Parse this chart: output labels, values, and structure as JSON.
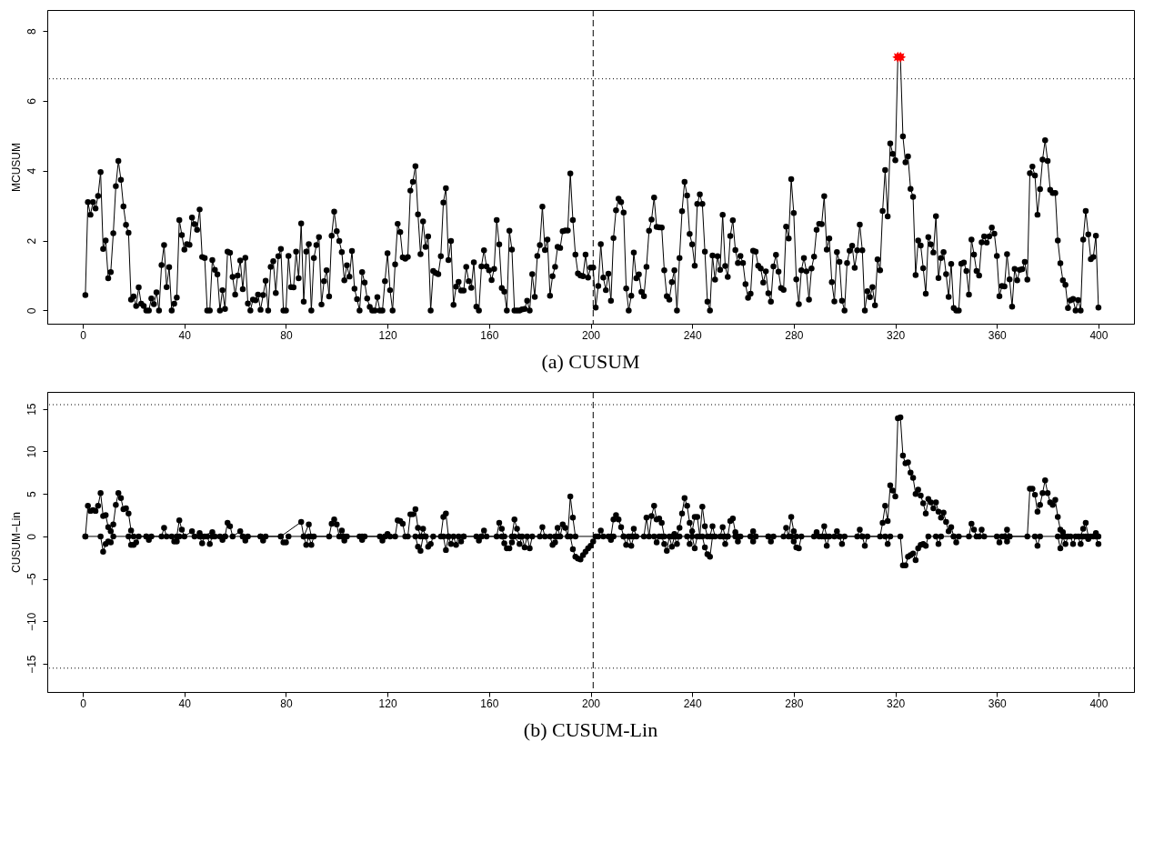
{
  "chart_data": [
    {
      "type": "line",
      "title": "(a)  CUSUM",
      "ylabel": "MCUSUM",
      "xlim": [
        -14,
        414
      ],
      "ylim": [
        -0.38,
        8.6
      ],
      "xticks": [
        0,
        40,
        80,
        120,
        160,
        200,
        240,
        280,
        320,
        360,
        400
      ],
      "yticks": [
        0,
        2,
        4,
        6,
        8
      ],
      "grid": false,
      "ref_lines": [
        {
          "axis": "x",
          "value": 201,
          "line_style": "dashed",
          "color": "#000000"
        },
        {
          "axis": "y",
          "value": 6.63,
          "line_style": "dotted",
          "color": "#000000"
        }
      ],
      "series": [
        {
          "type": "line",
          "color": "#000000",
          "marker": "circle",
          "x": [
            1,
            2,
            3,
            4,
            5,
            6,
            7,
            8,
            9,
            10,
            11,
            12,
            13,
            14,
            15,
            16,
            17,
            18,
            19,
            20,
            21,
            22,
            23,
            24,
            25,
            26,
            27,
            28,
            29,
            30,
            31,
            32,
            33,
            34,
            35,
            36,
            37,
            38,
            39,
            40,
            41,
            42,
            43,
            44,
            45,
            46,
            47,
            48,
            49,
            50,
            51,
            52,
            53,
            54,
            55,
            56,
            57,
            58,
            59,
            60,
            61,
            62,
            63,
            64,
            65,
            66,
            67,
            68,
            69,
            70,
            71,
            72,
            73,
            74,
            75,
            76,
            77,
            78,
            79,
            80,
            81,
            82,
            83,
            84,
            85,
            86,
            87,
            88,
            89,
            90,
            91,
            92,
            93,
            94,
            95,
            96,
            97,
            98,
            99,
            100,
            101,
            102,
            103,
            104,
            105,
            106,
            107,
            108,
            109,
            110,
            111,
            112,
            113,
            114,
            115,
            116,
            117,
            118,
            119,
            120,
            121,
            122,
            123,
            124,
            125,
            126,
            127,
            128,
            129,
            130,
            131,
            132,
            133,
            134,
            135,
            136,
            137,
            138,
            139,
            140,
            141,
            142,
            143,
            144,
            145,
            146,
            147,
            148,
            149,
            150,
            151,
            152,
            153,
            154,
            155,
            156,
            157,
            158,
            159,
            160,
            161,
            162,
            163,
            164,
            165,
            166,
            167,
            168,
            169,
            170,
            171,
            172,
            173,
            174,
            175,
            176,
            177,
            178,
            179,
            180,
            181,
            182,
            183,
            184,
            185,
            186,
            187,
            188,
            189,
            190,
            191,
            192,
            193,
            194,
            195,
            196,
            197,
            198,
            199,
            200,
            201,
            202,
            203,
            204,
            205,
            206,
            207,
            208,
            209,
            210,
            211,
            212,
            213,
            214,
            215,
            216,
            217,
            218,
            219,
            220,
            221,
            222,
            223,
            224,
            225,
            226,
            227,
            228,
            229,
            230,
            231,
            232,
            233,
            234,
            235,
            236,
            237,
            238,
            239,
            240,
            241,
            242,
            243,
            244,
            245,
            246,
            247,
            248,
            249,
            250,
            251,
            252,
            253,
            254,
            255,
            256,
            257,
            258,
            259,
            260,
            261,
            262,
            263,
            264,
            265,
            266,
            267,
            268,
            269,
            270,
            271,
            272,
            273,
            274,
            275,
            276,
            277,
            278,
            279,
            280,
            281,
            282,
            283,
            284,
            285,
            286,
            287,
            288,
            289,
            290,
            291,
            292,
            293,
            294,
            295,
            296,
            297,
            298,
            299,
            300,
            301,
            302,
            303,
            304,
            305,
            306,
            307,
            308,
            309,
            310,
            311,
            312,
            313,
            314,
            315,
            316,
            317,
            318,
            319,
            320,
            321,
            322,
            323,
            324,
            325,
            326,
            327,
            328,
            329,
            330,
            331,
            332,
            333,
            334,
            335,
            336,
            337,
            338,
            339,
            340,
            341,
            342,
            343,
            344,
            345,
            346,
            347,
            348,
            349,
            350,
            351,
            352,
            353,
            354,
            355,
            356,
            357,
            358,
            359,
            360,
            361,
            362,
            363,
            364,
            365,
            366,
            367,
            368,
            369,
            370,
            371,
            372,
            373,
            374,
            375,
            376,
            377,
            378,
            379,
            380,
            381,
            382,
            383,
            384,
            385,
            386,
            387,
            388,
            389,
            390,
            391,
            392,
            393,
            394,
            395,
            396,
            397,
            398,
            399,
            400
          ],
          "values": [
            0.44,
            3.1,
            2.74,
            3.1,
            2.92,
            3.28,
            3.96,
            1.76,
            2.0,
            0.92,
            1.1,
            2.21,
            3.56,
            4.28,
            3.74,
            2.98,
            2.45,
            2.22,
            0.31,
            0.4,
            0.13,
            0.66,
            0.19,
            0.13,
            0,
            0,
            0.34,
            0.18,
            0.52,
            0,
            1.3,
            1.87,
            0.67,
            1.24,
            0,
            0.19,
            0.37,
            2.59,
            2.16,
            1.74,
            1.9,
            1.88,
            2.66,
            2.47,
            2.31,
            2.89,
            1.53,
            1.5,
            0,
            0,
            1.44,
            1.16,
            1.03,
            0,
            0.58,
            0.04,
            1.68,
            1.65,
            0.96,
            0.45,
            1.0,
            1.43,
            0.61,
            1.51,
            0.2,
            0,
            0.31,
            0.29,
            0.45,
            0.02,
            0.44,
            0.85,
            0,
            1.25,
            1.41,
            0.5,
            1.55,
            1.76,
            0,
            0,
            1.56,
            0.67,
            0.66,
            1.68,
            0.92,
            2.49,
            0.25,
            1.68,
            1.9,
            0,
            1.5,
            1.87,
            2.1,
            0.17,
            0.84,
            1.15,
            0.4,
            2.14,
            2.83,
            2.27,
            1.99,
            1.67,
            0.86,
            1.29,
            0.97,
            1.7,
            0.62,
            0.32,
            0,
            1.1,
            0.8,
            0.34,
            0.1,
            0,
            0,
            0.38,
            0,
            0,
            0.84,
            1.64,
            0.58,
            0,
            1.32,
            2.48,
            2.24,
            1.52,
            1.48,
            1.53,
            3.43,
            3.68,
            4.13,
            2.75,
            1.61,
            2.55,
            1.82,
            2.12,
            0,
            1.13,
            1.07,
            1.04,
            1.55,
            3.09,
            3.5,
            1.44,
            1.99,
            0.16,
            0.68,
            0.82,
            0.57,
            0.57,
            1.25,
            0.84,
            0.65,
            1.38,
            0.11,
            0,
            1.26,
            1.72,
            1.26,
            1.15,
            0.87,
            1.19,
            2.59,
            1.89,
            0.64,
            0.54,
            0,
            2.28,
            1.74,
            0,
            0,
            0,
            0.03,
            0.04,
            0.28,
            0,
            1.04,
            0.39,
            1.56,
            1.87,
            2.97,
            1.73,
            2.03,
            0.42,
            0.98,
            1.25,
            1.82,
            1.79,
            2.27,
            2.29,
            2.29,
            3.92,
            2.59,
            1.6,
            1.06,
            1.0,
            0.98,
            1.6,
            0.94,
            1.23,
            1.23,
            0.08,
            0.7,
            1.9,
            0.94,
            0.58,
            1.05,
            0.28,
            2.07,
            2.87,
            3.2,
            3.1,
            2.8,
            0.63,
            0,
            0.42,
            1.66,
            0.92,
            1.03,
            0.53,
            0.41,
            1.25,
            2.28,
            2.6,
            3.23,
            2.39,
            2.38,
            2.37,
            1.15,
            0.41,
            0.31,
            0.81,
            1.15,
            0,
            1.5,
            2.84,
            3.68,
            3.29,
            2.19,
            1.89,
            1.28,
            3.05,
            3.32,
            3.05,
            1.68,
            0.25,
            0,
            1.57,
            0.88,
            1.55,
            1.16,
            2.74,
            1.27,
            0.96,
            2.13,
            2.58,
            1.73,
            1.36,
            1.56,
            1.36,
            0.75,
            0.36,
            0.48,
            1.71,
            1.68,
            1.28,
            1.2,
            0.8,
            1.12,
            0.49,
            0.25,
            1.26,
            1.59,
            1.11,
            0.64,
            0.59,
            2.4,
            2.06,
            3.76,
            2.79,
            0.89,
            0.18,
            1.15,
            1.5,
            1.12,
            0.31,
            1.2,
            1.54,
            2.31,
            2.48,
            2.47,
            3.27,
            1.74,
            2.06,
            0.81,
            0.26,
            1.67,
            1.39,
            0.28,
            0,
            1.36,
            1.71,
            1.85,
            1.22,
            1.72,
            2.46,
            1.72,
            0,
            0.55,
            0.38,
            0.67,
            0.15,
            1.46,
            1.15,
            2.85,
            4.02,
            2.69,
            4.78,
            4.48,
            4.3,
            7.25,
            7.25,
            4.98,
            4.24,
            4.41,
            3.48,
            3.25,
            1.01,
            2.0,
            1.86,
            1.21,
            0.48,
            2.1,
            1.89,
            1.66,
            2.7,
            0.93,
            1.5,
            1.67,
            1.04,
            0.39,
            1.33,
            0.07,
            0,
            0,
            1.34,
            1.37,
            1.13,
            0.45,
            2.03,
            1.6,
            1.13,
            1.0,
            1.95,
            2.12,
            1.94,
            2.12,
            2.37,
            2.2,
            1.56,
            0.41,
            0.7,
            0.69,
            1.61,
            0.89,
            0.11,
            1.19,
            0.86,
            1.16,
            1.18,
            1.39,
            0.88,
            3.93,
            4.12,
            3.86,
            2.74,
            3.47,
            4.32,
            4.87,
            4.28,
            3.45,
            3.36,
            3.36,
            2.0,
            1.35,
            0.86,
            0.73,
            0.07,
            0.29,
            0.33,
            0,
            0.3,
            0,
            2.03,
            2.85,
            2.18,
            1.47,
            1.53,
            2.14,
            0.08
          ]
        },
        {
          "type": "scatter",
          "color": "#ff0000",
          "marker": "star",
          "x": [
            321,
            322
          ],
          "values": [
            7.25,
            7.25
          ]
        }
      ]
    },
    {
      "type": "line",
      "title": "(b)  CUSUM-Lin",
      "ylabel": "CUSUM−Lin",
      "xlim": [
        -14,
        414
      ],
      "ylim": [
        -18.3,
        17
      ],
      "xticks": [
        0,
        40,
        80,
        120,
        160,
        200,
        240,
        280,
        320,
        360,
        400
      ],
      "yticks": [
        {
          "value": -15,
          "label": "−15"
        },
        {
          "value": -10,
          "label": "−10"
        },
        {
          "value": -5,
          "label": "−5"
        },
        0,
        5,
        10,
        15
      ],
      "grid": false,
      "ref_lines": [
        {
          "axis": "x",
          "value": 201,
          "line_style": "dashed",
          "color": "#000000"
        },
        {
          "axis": "y",
          "value": 15.5,
          "line_style": "dotted",
          "color": "#000000"
        },
        {
          "axis": "y",
          "value": -15.5,
          "line_style": "dotted",
          "color": "#000000"
        }
      ],
      "series": [
        {
          "type": "line",
          "color": "#000000",
          "marker": "circle",
          "x": [
            1,
            2,
            3,
            4,
            5,
            6,
            7,
            8,
            9,
            10,
            11,
            12,
            13,
            14,
            15,
            16,
            17,
            18,
            19,
            20,
            25,
            31,
            32,
            33,
            37,
            38,
            39,
            40,
            43,
            44,
            46,
            47,
            51,
            52,
            56,
            57,
            58,
            59,
            62,
            63,
            70,
            78,
            86,
            87,
            89,
            90,
            97,
            98,
            99,
            100,
            101,
            102,
            103,
            110,
            119,
            120,
            121,
            123,
            124,
            125,
            126,
            127,
            128,
            129,
            130,
            131,
            132,
            133,
            134,
            135,
            141,
            142,
            143,
            144,
            150,
            157,
            158,
            159,
            163,
            164,
            165,
            166,
            169,
            170,
            171,
            172,
            180,
            181,
            182,
            186,
            187,
            188,
            189,
            190,
            191,
            192,
            193,
            194,
            203,
            204,
            205,
            208,
            209,
            210,
            211,
            212,
            213,
            216,
            217,
            218,
            221,
            222,
            223,
            224,
            225,
            226,
            227,
            228,
            229,
            232,
            233,
            234,
            235,
            236,
            237,
            238,
            239,
            240,
            241,
            242,
            243,
            244,
            245,
            246,
            247,
            248,
            249,
            251,
            252,
            253,
            254,
            255,
            256,
            257,
            258,
            263,
            264,
            265,
            270,
            276,
            277,
            278,
            279,
            280,
            281,
            288,
            289,
            290,
            291,
            292,
            293,
            296,
            297,
            298,
            305,
            306,
            307,
            314,
            315,
            316,
            317,
            318,
            319,
            320,
            321,
            322,
            323,
            324,
            325,
            326,
            327,
            328,
            329,
            330,
            331,
            332,
            333,
            334,
            335,
            336,
            337,
            338,
            339,
            340,
            341,
            342,
            343,
            349,
            350,
            351,
            352,
            353,
            354,
            355,
            363,
            364,
            365,
            372,
            373,
            374,
            375,
            376,
            377,
            378,
            379,
            380,
            381,
            382,
            383,
            384,
            385,
            386,
            387,
            393,
            394,
            395,
            396,
            398,
            399,
            400
          ],
          "values": [
            0,
            3.6,
            3.0,
            3.1,
            3.0,
            3.6,
            5.1,
            2.4,
            2.5,
            1.1,
            0.6,
            1.4,
            3.7,
            5.1,
            4.5,
            3.2,
            3.3,
            2.7,
            0.7,
            0,
            0,
            0,
            1.0,
            0,
            0,
            1.9,
            0.8,
            0,
            0.6,
            0,
            0.4,
            0,
            0.5,
            0,
            0,
            1.6,
            1.2,
            0,
            0.6,
            0,
            0,
            0,
            1.7,
            0,
            1.4,
            0,
            0,
            1.5,
            2.0,
            1.4,
            0,
            0.7,
            0,
            0,
            0,
            0.3,
            0,
            0,
            1.9,
            1.8,
            1.5,
            0,
            0,
            2.6,
            2.6,
            3.2,
            1.0,
            0,
            0.9,
            0,
            0,
            2.3,
            2.7,
            0,
            0,
            0,
            0.7,
            0,
            0,
            1.6,
            0.9,
            0,
            0,
            2.0,
            0.9,
            0,
            0,
            1.1,
            0,
            0,
            1.0,
            0,
            1.4,
            1.0,
            0,
            4.7,
            2.2,
            0,
            0,
            0.7,
            0,
            0,
            2.0,
            2.5,
            2.0,
            1.1,
            0,
            0,
            0.9,
            0,
            0,
            2.2,
            0,
            2.4,
            3.6,
            2.0,
            2.1,
            1.6,
            0,
            0,
            0.3,
            0,
            1.0,
            2.7,
            4.5,
            3.6,
            1.6,
            0.6,
            2.3,
            2.3,
            0,
            3.5,
            1.2,
            0,
            0,
            1.2,
            0,
            0,
            1.1,
            0,
            0,
            1.8,
            2.1,
            0.5,
            0,
            0,
            0.6,
            0,
            0,
            0,
            1.0,
            0,
            2.3,
            0.6,
            0,
            0,
            0.5,
            0,
            0,
            1.2,
            0,
            0,
            0.6,
            0,
            0,
            0.8,
            0,
            0,
            1.6,
            3.6,
            1.8,
            6.0,
            5.4,
            4.7,
            13.9,
            14.0,
            9.5,
            8.6,
            8.7,
            7.5,
            6.9,
            5.0,
            5.5,
            4.8,
            3.9,
            2.7,
            4.4,
            4.0,
            3.3,
            4.0,
            2.9,
            2.2,
            2.8,
            1.7,
            0.6,
            1.1,
            0,
            0,
            1.5,
            0.8,
            0,
            0,
            0.8,
            0,
            0,
            0.8,
            0,
            0,
            5.6,
            5.6,
            4.9,
            2.9,
            3.7,
            5.1,
            6.6,
            5.1,
            4.0,
            3.7,
            4.3,
            2.3,
            0.8,
            0.5,
            0,
            0,
            0.9,
            1.6,
            0,
            0,
            0.4,
            0
          ]
        },
        {
          "type": "line",
          "color": "#000000",
          "marker": "circle",
          "x": [
            1,
            7,
            8,
            9,
            10,
            11,
            12,
            18,
            19,
            20,
            21,
            22,
            25,
            26,
            27,
            35,
            36,
            37,
            38,
            46,
            47,
            48,
            49,
            50,
            51,
            54,
            55,
            56,
            63,
            64,
            65,
            70,
            71,
            72,
            78,
            79,
            80,
            81,
            87,
            88,
            89,
            90,
            91,
            102,
            103,
            104,
            109,
            110,
            111,
            117,
            118,
            119,
            131,
            132,
            133,
            134,
            135,
            136,
            137,
            138,
            142,
            143,
            144,
            145,
            146,
            147,
            148,
            149,
            150,
            155,
            156,
            157,
            165,
            166,
            167,
            168,
            169,
            170,
            172,
            173,
            174,
            175,
            176,
            177,
            184,
            185,
            186,
            187,
            192,
            193,
            194,
            195,
            196,
            197,
            198,
            199,
            200,
            201,
            202,
            207,
            208,
            209,
            213,
            214,
            215,
            216,
            217,
            225,
            226,
            227,
            228,
            229,
            230,
            231,
            232,
            233,
            234,
            235,
            238,
            239,
            240,
            241,
            242,
            244,
            245,
            246,
            247,
            248,
            252,
            253,
            254,
            257,
            258,
            259,
            263,
            264,
            265,
            270,
            271,
            272,
            279,
            280,
            281,
            282,
            283,
            292,
            293,
            294,
            298,
            299,
            300,
            307,
            308,
            309,
            316,
            317,
            318,
            322,
            323,
            324,
            325,
            326,
            327,
            328,
            329,
            330,
            331,
            332,
            333,
            336,
            337,
            338,
            343,
            344,
            345,
            360,
            361,
            362,
            363,
            364,
            365,
            375,
            376,
            377,
            384,
            385,
            386,
            387,
            388,
            389,
            390,
            391,
            392,
            393,
            394,
            395,
            396,
            397,
            399,
            400
          ],
          "values": [
            0,
            0,
            -1.8,
            -0.9,
            -0.6,
            -0.7,
            0,
            0,
            -1.0,
            -1.0,
            -0.7,
            0,
            0,
            -0.4,
            0,
            0,
            -0.6,
            -0.6,
            0,
            0,
            -0.8,
            0,
            0,
            -0.9,
            0,
            0,
            -0.4,
            0,
            0,
            -0.5,
            0,
            0,
            -0.5,
            0,
            0,
            -0.7,
            -0.7,
            0,
            0,
            -1.0,
            0,
            -1.0,
            0,
            0,
            -0.5,
            0,
            0,
            -0.4,
            0,
            0,
            -0.5,
            0,
            0,
            -1.2,
            -1.7,
            0,
            0,
            -1.2,
            -0.9,
            0,
            0,
            -1.6,
            0,
            -0.9,
            0,
            -1.0,
            0,
            -0.6,
            0,
            0,
            -0.5,
            0,
            0,
            -0.8,
            -1.4,
            -1.4,
            -0.7,
            0,
            -0.9,
            0,
            -1.3,
            0,
            -1.4,
            0,
            0,
            -1.0,
            -0.7,
            0,
            0,
            -1.5,
            -2.4,
            -2.6,
            -2.7,
            -2.2,
            -1.8,
            -1.4,
            -1.1,
            -0.6,
            0,
            0,
            -0.4,
            0,
            0,
            -1.0,
            0,
            -1.1,
            0,
            0,
            -0.7,
            0,
            0,
            -0.9,
            -1.7,
            0,
            -1.2,
            0,
            -0.9,
            0,
            0,
            -0.9,
            0,
            -1.4,
            0,
            0,
            -1.3,
            -2.1,
            -2.4,
            0,
            0,
            -0.9,
            0,
            0,
            -0.6,
            0,
            0,
            -0.6,
            0,
            0,
            -0.6,
            0,
            0,
            -0.6,
            -1.3,
            -1.4,
            0,
            0,
            -1.1,
            0,
            0,
            -0.9,
            0,
            0,
            -1.1,
            0,
            0,
            -0.9,
            0,
            0,
            -3.4,
            -3.4,
            -2.4,
            -2.2,
            -2.0,
            -2.8,
            -1.4,
            -1.0,
            -0.9,
            -1.1,
            0,
            0,
            -0.9,
            0,
            0,
            -0.7,
            0,
            0,
            -0.7,
            0,
            0,
            -0.6,
            0,
            0,
            -1.1,
            0,
            0,
            -1.4,
            0,
            -0.9,
            0,
            0,
            -0.9,
            0,
            0,
            -0.9,
            0,
            0,
            -0.3,
            0,
            0,
            -0.9
          ]
        }
      ]
    }
  ]
}
